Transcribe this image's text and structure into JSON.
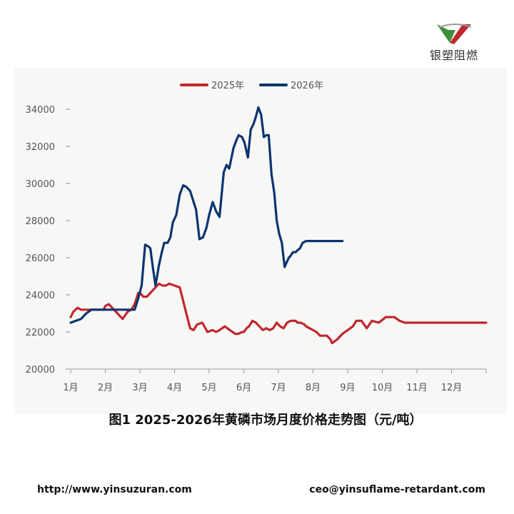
{
  "logo": {
    "text": "银塑阻燃"
  },
  "chart_data": {
    "type": "line",
    "title": "图1 2025-2026年黄磷市场月度价格走势图（元/吨）",
    "xlabel": "",
    "ylabel": "",
    "categories": [
      "1月",
      "2月",
      "3月",
      "4月",
      "5月",
      "6月",
      "7月",
      "8月",
      "9月",
      "10月",
      "11月",
      "12月"
    ],
    "ylim": [
      20000,
      34000
    ],
    "yticks": [
      20000,
      22000,
      24000,
      26000,
      28000,
      30000,
      32000,
      34000
    ],
    "grid": false,
    "legend_position": "top",
    "series": [
      {
        "name": "2025年",
        "color": "#c0272d",
        "x": [
          0,
          0.08,
          0.2,
          0.3,
          0.45,
          0.6,
          0.8,
          0.95,
          1.0,
          1.1,
          1.2,
          1.3,
          1.5,
          1.65,
          1.75,
          1.85,
          1.95,
          2.0,
          2.1,
          2.2,
          2.3,
          2.35,
          2.45,
          2.55,
          2.65,
          2.75,
          2.85,
          3.0,
          3.15,
          3.3,
          3.45,
          3.55,
          3.65,
          3.8,
          3.95,
          4.1,
          4.2,
          4.3,
          4.45,
          4.6,
          4.75,
          4.85,
          4.95,
          5.0,
          5.08,
          5.15,
          5.25,
          5.35,
          5.45,
          5.5,
          5.55,
          5.65,
          5.75,
          5.85,
          5.95,
          6.05,
          6.15,
          6.25,
          6.35,
          6.5,
          6.55,
          6.65,
          6.75,
          6.8,
          6.9,
          7.0,
          7.1,
          7.2,
          7.3,
          7.4,
          7.5,
          7.55,
          7.7,
          7.85,
          8.0,
          8.15,
          8.25,
          8.4,
          8.55,
          8.7,
          8.9,
          9.1,
          9.2,
          9.35,
          9.5,
          9.65,
          9.8,
          10.0,
          10.2,
          10.35,
          10.5,
          10.65,
          10.8,
          11.0,
          11.15,
          11.3,
          11.45,
          11.6,
          11.75,
          11.9,
          12.0
        ],
        "values": [
          22800,
          23100,
          23300,
          23200,
          23200,
          23200,
          23200,
          23200,
          23400,
          23500,
          23300,
          23100,
          22700,
          23100,
          23200,
          23500,
          24100,
          24100,
          23900,
          23900,
          24100,
          24200,
          24400,
          24600,
          24500,
          24500,
          24600,
          24500,
          24400,
          23300,
          22200,
          22100,
          22400,
          22500,
          22000,
          22100,
          22000,
          22100,
          22300,
          22100,
          21900,
          21900,
          22000,
          22000,
          22200,
          22300,
          22600,
          22500,
          22300,
          22200,
          22100,
          22200,
          22100,
          22200,
          22500,
          22300,
          22200,
          22500,
          22600,
          22600,
          22500,
          22500,
          22400,
          22300,
          22200,
          22100,
          22000,
          21800,
          21800,
          21800,
          21600,
          21400,
          21600,
          21900,
          22100,
          22300,
          22600,
          22600,
          22200,
          22600,
          22500,
          22800,
          22800,
          22800,
          22600,
          22500,
          22500,
          22500,
          22500,
          22500,
          22500,
          22500,
          22500,
          22500,
          22500,
          22500,
          22500,
          22500,
          22500,
          22500,
          22500
        ]
      },
      {
        "name": "2026年",
        "color": "#0d3470",
        "x": [
          0,
          0.15,
          0.3,
          0.45,
          0.6,
          0.7,
          0.8,
          0.9,
          1.0,
          1.2,
          1.4,
          1.6,
          1.75,
          1.85,
          1.95,
          2.05,
          2.15,
          2.25,
          2.3,
          2.38,
          2.45,
          2.55,
          2.62,
          2.7,
          2.8,
          2.88,
          2.95,
          3.05,
          3.15,
          3.25,
          3.35,
          3.45,
          3.55,
          3.62,
          3.72,
          3.82,
          3.92,
          4.0,
          4.1,
          4.2,
          4.3,
          4.42,
          4.5,
          4.58,
          4.7,
          4.78,
          4.85,
          4.95,
          5.02,
          5.12,
          5.2,
          5.28,
          5.35,
          5.42,
          5.5,
          5.58,
          5.65,
          5.72,
          5.8,
          5.88,
          5.95,
          6.02,
          6.1,
          6.18,
          6.25,
          6.3,
          6.35,
          6.42,
          6.5,
          6.55,
          6.62,
          6.7,
          6.8,
          6.88,
          6.95,
          7.02,
          7.1,
          7.18,
          7.25,
          7.3,
          7.38,
          7.45,
          7.55,
          7.62,
          7.7,
          7.78,
          7.85
        ],
        "values": [
          22500,
          22600,
          22700,
          23000,
          23200,
          23200,
          23200,
          23200,
          23200,
          23200,
          23200,
          23200,
          23200,
          23200,
          23800,
          24500,
          26700,
          26600,
          26500,
          25400,
          24500,
          25600,
          26200,
          26800,
          26800,
          27100,
          27900,
          28300,
          29400,
          29900,
          29800,
          29600,
          29000,
          28600,
          27000,
          27100,
          27600,
          28300,
          29000,
          28500,
          28200,
          30600,
          31000,
          30800,
          31900,
          32300,
          32600,
          32500,
          32200,
          31400,
          32900,
          33200,
          33600,
          34100,
          33700,
          32500,
          32600,
          32600,
          30500,
          29500,
          28000,
          27300,
          26800,
          25500,
          25800,
          26000,
          26100,
          26300,
          26300,
          26400,
          26500,
          26800,
          26900,
          26900,
          26900,
          26900,
          26900,
          26900,
          26900,
          26900,
          26900,
          26900,
          26900,
          26900,
          26900,
          26900,
          26900
        ]
      }
    ]
  },
  "footer": {
    "url": "http://www.yinsuzuran.com",
    "email": "ceo@yinsuflame-retardant.com"
  }
}
